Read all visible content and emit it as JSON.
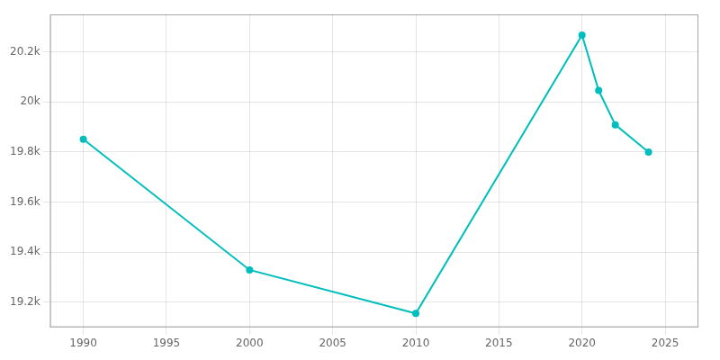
{
  "chart_data": {
    "type": "line",
    "x": [
      1990,
      2000,
      2010,
      2020,
      2021,
      2022,
      2024
    ],
    "values": [
      19851,
      19329,
      19155,
      20267,
      20046,
      19909,
      19800
    ],
    "color": "#00BEBE",
    "marker": "circle",
    "xlim": [
      1988,
      2027
    ],
    "ylim": [
      19100,
      20350
    ],
    "xticks": [
      1990,
      1995,
      2000,
      2005,
      2010,
      2015,
      2020,
      2025
    ],
    "yticks": [
      {
        "value": 19200,
        "label": "19.2k"
      },
      {
        "value": 19400,
        "label": "19.4k"
      },
      {
        "value": 19600,
        "label": "19.6k"
      },
      {
        "value": 19800,
        "label": "19.8k"
      },
      {
        "value": 20000,
        "label": "20k"
      },
      {
        "value": 20200,
        "label": "20.2k"
      }
    ],
    "grid": true
  }
}
